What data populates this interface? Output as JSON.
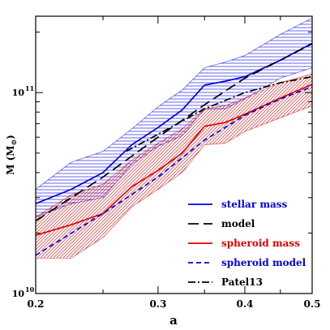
{
  "chart_data": {
    "type": "line",
    "xlabel": "a",
    "ylabel": "M  (M",
    "ylabel_symbol": "⊙",
    "ylabel_close": ")",
    "xscale": "log",
    "yscale": "log",
    "xlim": [
      0.2,
      0.5
    ],
    "ylim": [
      10000000000.0,
      240000000000.0
    ],
    "xticks": [
      {
        "value": 0.2,
        "label": "0.2"
      },
      {
        "value": 0.3,
        "label": "0.3"
      },
      {
        "value": 0.4,
        "label": "0.4"
      },
      {
        "value": 0.5,
        "label": "0.5"
      }
    ],
    "yticks": [
      {
        "value": 10000000000.0,
        "base": "10",
        "exp": "10"
      },
      {
        "value": 100000000000.0,
        "base": "10",
        "exp": "11"
      }
    ],
    "grid": false,
    "legend_position": "bottom-right",
    "bands": [
      {
        "name": "stellar mass range",
        "color": "#0000dd",
        "hatch": "horizontal",
        "x": [
          0.2,
          0.225,
          0.25,
          0.275,
          0.3,
          0.325,
          0.35,
          0.375,
          0.4,
          0.45,
          0.5
        ],
        "upper": [
          33000000000.0,
          45000000000.0,
          51000000000.0,
          66000000000.0,
          85000000000.0,
          103000000000.0,
          133000000000.0,
          142000000000.0,
          153000000000.0,
          195000000000.0,
          235000000000.0
        ],
        "lower": [
          24000000000.0,
          28000000000.0,
          30000000000.0,
          44000000000.0,
          54000000000.0,
          61000000000.0,
          83000000000.0,
          83000000000.0,
          93000000000.0,
          118000000000.0,
          133000000000.0
        ]
      },
      {
        "name": "spheroid mass range",
        "color": "#dd0000",
        "hatch": "diagonal",
        "x": [
          0.2,
          0.225,
          0.25,
          0.275,
          0.3,
          0.325,
          0.35,
          0.375,
          0.4,
          0.45,
          0.5
        ],
        "upper": [
          24000000000.0,
          31000000000.0,
          35000000000.0,
          46000000000.0,
          56000000000.0,
          66000000000.0,
          83000000000.0,
          86000000000.0,
          94000000000.0,
          112000000000.0,
          124000000000.0
        ],
        "lower": [
          15000000000.0,
          15000000000.0,
          19000000000.0,
          27000000000.0,
          33000000000.0,
          40000000000.0,
          55000000000.0,
          56000000000.0,
          64000000000.0,
          75000000000.0,
          86000000000.0
        ]
      }
    ],
    "series": [
      {
        "name": "stellar mass",
        "color": "#0000dd",
        "dash": "solid",
        "x": [
          0.2,
          0.225,
          0.25,
          0.275,
          0.3,
          0.325,
          0.35,
          0.375,
          0.4,
          0.45,
          0.5
        ],
        "y": [
          28000000000.0,
          33000000000.0,
          40000000000.0,
          55000000000.0,
          67000000000.0,
          82000000000.0,
          109000000000.0,
          114000000000.0,
          120000000000.0,
          145000000000.0,
          176000000000.0
        ]
      },
      {
        "name": "model",
        "color": "#000000",
        "dash": "longdash",
        "x": [
          0.2,
          0.25,
          0.3,
          0.35,
          0.4,
          0.45,
          0.5
        ],
        "y": [
          23000000000.0,
          38000000000.0,
          60000000000.0,
          87000000000.0,
          118000000000.0,
          145000000000.0,
          175000000000.0
        ]
      },
      {
        "name": "spheroid mass",
        "color": "#dd0000",
        "dash": "solid",
        "x": [
          0.2,
          0.225,
          0.25,
          0.275,
          0.3,
          0.325,
          0.35,
          0.375,
          0.4,
          0.45,
          0.5
        ],
        "y": [
          19500000000.0,
          22000000000.0,
          25000000000.0,
          34000000000.0,
          41000000000.0,
          50000000000.0,
          68000000000.0,
          71000000000.0,
          78000000000.0,
          94000000000.0,
          110000000000.0
        ]
      },
      {
        "name": "spheroid model",
        "color": "#0000dd",
        "dash": "shortdash",
        "x": [
          0.2,
          0.25,
          0.3,
          0.35,
          0.4,
          0.45,
          0.5
        ],
        "y": [
          15500000000.0,
          25000000000.0,
          38000000000.0,
          58000000000.0,
          77000000000.0,
          93000000000.0,
          107000000000.0
        ]
      },
      {
        "name": "Patel13",
        "color": "#000000",
        "dash": "dashdot",
        "x": [
          0.27,
          0.3,
          0.35,
          0.4,
          0.45,
          0.5
        ],
        "y": [
          51000000000.0,
          62000000000.0,
          83000000000.0,
          100000000000.0,
          112000000000.0,
          120000000000.0
        ]
      }
    ],
    "legend": [
      {
        "label": "stellar mass",
        "text_color": "#0000dd",
        "line_color": "#0000dd",
        "dash": "solid"
      },
      {
        "label": "model",
        "text_color": "#000000",
        "line_color": "#000000",
        "dash": "longdash"
      },
      {
        "label": "spheroid mass",
        "text_color": "#dd0000",
        "line_color": "#dd0000",
        "dash": "solid"
      },
      {
        "label": "spheroid model",
        "text_color": "#0000dd",
        "line_color": "#0000dd",
        "dash": "shortdash"
      },
      {
        "label": "Patel13",
        "text_color": "#000000",
        "line_color": "#000000",
        "dash": "dashdot"
      }
    ]
  }
}
